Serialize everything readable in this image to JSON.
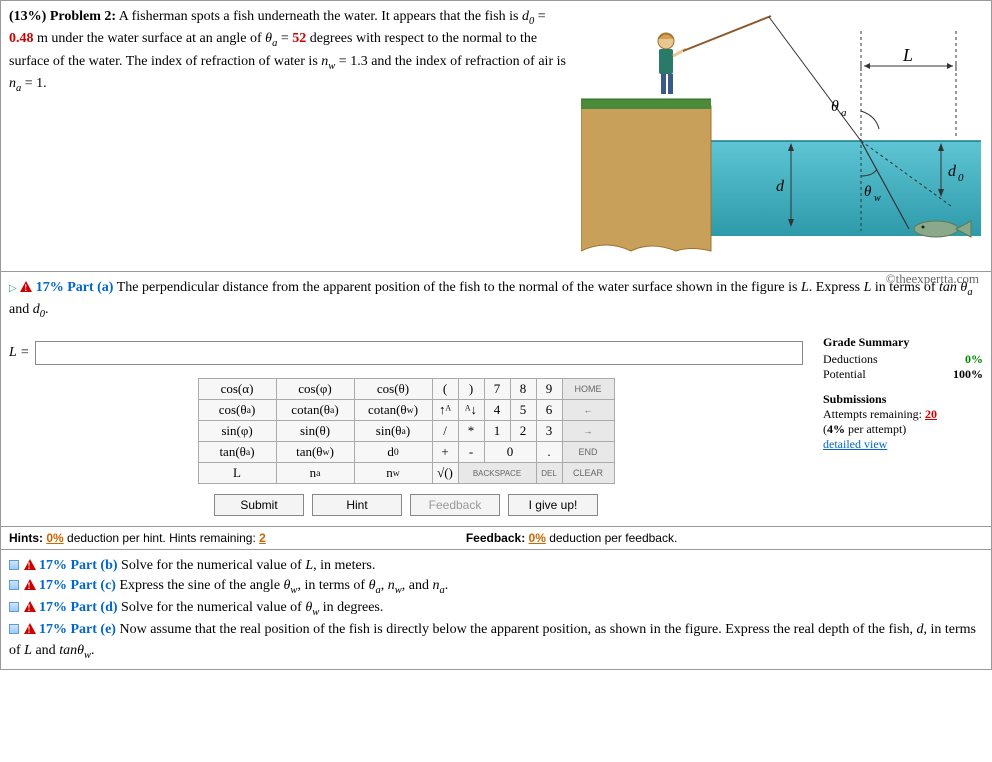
{
  "problem": {
    "weight_label": "(13%)  Problem 2:",
    "text_parts": {
      "p1": "A fisherman spots a fish underneath the water. It appears that the fish is ",
      "d0_sym": "d",
      "d0_sub": "0",
      "eq1": " = ",
      "d0_val": "0.48",
      "p2": " m under the water surface at an angle of ",
      "th_sym": "θ",
      "th_sub": "a",
      "eq2": " = ",
      "th_val": "52",
      "p3": " degrees with respect to the normal to the surface of the water. The index of refraction of water is ",
      "nw_sym": "n",
      "nw_sub": "w",
      "eq3": " = 1.3 and the index of refraction of air is ",
      "na_sym": "n",
      "na_sub": "a",
      "eq4": " = 1."
    },
    "copyright": "©theexpertta.com"
  },
  "figure": {
    "colors": {
      "grass": "#4a8a3a",
      "dirt": "#c9a05a",
      "water_top": "#3ea9b8",
      "water_bot": "#2d8a9a",
      "line": "#444",
      "dash": "#555",
      "fish": "#8aa88a"
    },
    "labels": {
      "L": "L",
      "theta_a": "θ",
      "theta_a_sub": "a",
      "d": "d",
      "d0": "d",
      "d0_sub": "0",
      "theta_w": "θ",
      "theta_w_sub": "w"
    }
  },
  "part_a": {
    "header_pct": "17% Part (a)",
    "header_text": "The perpendicular distance from the apparent position of the fish to the normal of the water surface shown in the figure is ",
    "header_L": "L",
    "header_text2": ". Express ",
    "header_L2": "L",
    "header_text3": " in terms of ",
    "tan": "tan ",
    "th": "θ",
    "th_sub": "a",
    "and": " and ",
    "d0": "d",
    "d0_sub": "0",
    "dot": ".",
    "input_label": "L = "
  },
  "keypad": {
    "func": [
      "cos(α)",
      "cos(φ)",
      "cos(θ)",
      "cos(θₐ)",
      "cotan(θₐ)",
      "cotan(θ_w)",
      "sin(φ)",
      "sin(θ)",
      "sin(θₐ)",
      "tan(θₐ)",
      "tan(θ_w)",
      "d₀",
      "L",
      "nₐ",
      "n_w"
    ],
    "num_rows": [
      [
        "(",
        ")",
        "7",
        "8",
        "9"
      ],
      [
        "↑ᴬ",
        "ᴬ↓",
        "4",
        "5",
        "6"
      ],
      [
        "/",
        "*",
        "1",
        "2",
        "3"
      ],
      [
        "+",
        "-",
        "0",
        "",
        "."
      ],
      [
        "√()",
        "BACKSPACE",
        "",
        "DEL",
        ""
      ]
    ],
    "ctrl": [
      "HOME",
      "←",
      "→",
      "END",
      "CLEAR"
    ]
  },
  "actions": {
    "submit": "Submit",
    "hint": "Hint",
    "feedback": "Feedback",
    "giveup": "I give up!"
  },
  "grade": {
    "title": "Grade Summary",
    "deductions_label": "Deductions",
    "deductions_val": "0%",
    "potential_label": "Potential",
    "potential_val": "100%",
    "submissions_title": "Submissions",
    "attempts_label": "Attempts remaining: ",
    "attempts_val": "20",
    "per_attempt_a": "(",
    "per_attempt_pct": "4%",
    "per_attempt_b": " per attempt)",
    "detailed": "detailed view"
  },
  "hints": {
    "hints_a": "Hints: ",
    "hints_pct": "0%",
    "hints_b": " deduction per hint. Hints remaining: ",
    "hints_rem": "2",
    "fb_a": "Feedback: ",
    "fb_pct": "0%",
    "fb_b": " deduction per feedback."
  },
  "other_parts": [
    {
      "pct": "17% Part (b)",
      "text": "Solve for the numerical value of ",
      "var": "L",
      "text2": ", in meters."
    },
    {
      "pct": "17% Part (c)",
      "text": "Express the sine of the angle ",
      "v1": "θ",
      "v1s": "w",
      "text2": ", in terms of ",
      "v2": "θ",
      "v2s": "a",
      "c": ", ",
      "v3": "n",
      "v3s": "w",
      "c2": ", and ",
      "v4": "n",
      "v4s": "a",
      "dot": "."
    },
    {
      "pct": "17% Part (d)",
      "text": "Solve for the numerical value of ",
      "v1": "θ",
      "v1s": "w",
      "text2": " in degrees."
    },
    {
      "pct": "17% Part (e)",
      "text": "Now assume that the real position of the fish is directly below the apparent position, as shown in the figure. Express the real depth of the fish, ",
      "v1": "d",
      "text2": ", in terms of ",
      "v2": "L",
      "c": " and ",
      "v3": "tanθ",
      "v3s": "w",
      "dot": "."
    }
  ]
}
